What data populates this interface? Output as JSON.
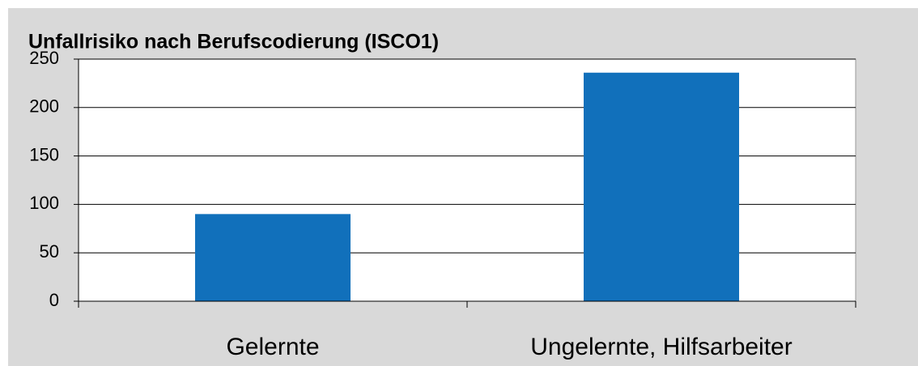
{
  "chart_data": {
    "type": "bar",
    "title": "Unfallrisiko nach Berufscodierung (ISCO1)",
    "categories": [
      "Gelernte",
      "Ungelernte, Hilfsarbeiter"
    ],
    "values": [
      90,
      236
    ],
    "color": "#1170bb",
    "ylim": [
      0,
      250
    ],
    "yticks": [
      0,
      50,
      100,
      150,
      200,
      250
    ],
    "grid": true
  }
}
